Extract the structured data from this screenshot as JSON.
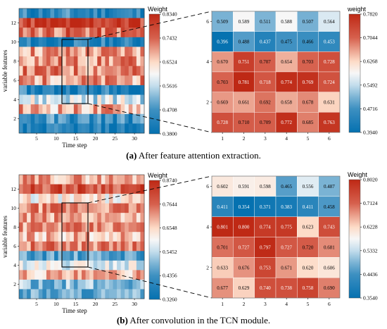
{
  "panels": [
    {
      "id": "a",
      "caption_label": "(a)",
      "caption_text": " After feature attention extraction.",
      "overview": {
        "xlabel": "Time step",
        "ylabel": "variable features",
        "x_ticks": [
          "5",
          "10",
          "15",
          "20",
          "25",
          "30"
        ],
        "y_ticks": [
          "2",
          "4",
          "6",
          "8",
          "10",
          "12"
        ],
        "colorbar_title": "Weight",
        "colorbar_ticks": [
          "0.8340",
          "0.7432",
          "0.6524",
          "0.5616",
          "0.4708",
          "0.3800"
        ],
        "vmin": 0.38,
        "vmax": 0.834,
        "n_rows": 13,
        "n_cols": 32,
        "row_means": [
          0.44,
          0.8,
          0.74,
          0.42,
          0.7,
          0.71,
          0.72,
          0.7,
          0.43,
          0.58,
          0.68,
          0.46,
          0.41
        ],
        "seed": 11
      },
      "zoom": {
        "y_ticks": [
          "2",
          "4",
          "6"
        ],
        "x_ticks": [
          "1",
          "2",
          "3",
          "4",
          "5",
          "6"
        ],
        "colorbar_title": "weight",
        "colorbar_ticks": [
          "0.7820",
          "0.7044",
          "0.6268",
          "0.5492",
          "0.4716",
          "0.3940"
        ],
        "vmin": 0.394,
        "vmax": 0.782
      }
    },
    {
      "id": "b",
      "caption_label": "(b)",
      "caption_text": " After convolution in the TCN module.",
      "overview": {
        "xlabel": "Time step",
        "ylabel": "variable features",
        "x_ticks": [
          "5",
          "10",
          "15",
          "20",
          "25",
          "30"
        ],
        "y_ticks": [
          "2",
          "4",
          "6",
          "8",
          "10",
          "12"
        ],
        "colorbar_title": "Weight",
        "colorbar_ticks": [
          "0.8740",
          "0.7644",
          "0.6548",
          "0.5452",
          "0.4356",
          "0.3260"
        ],
        "vmin": 0.326,
        "vmax": 0.874,
        "n_rows": 13,
        "n_cols": 32,
        "row_means": [
          0.7,
          0.8,
          0.62,
          0.73,
          0.7,
          0.72,
          0.68,
          0.74,
          0.45,
          0.58,
          0.68,
          0.5,
          0.47
        ],
        "seed": 29
      },
      "zoom": {
        "y_ticks": [
          "2",
          "4",
          "6"
        ],
        "x_ticks": [
          "1",
          "2",
          "3",
          "4",
          "5",
          "6"
        ],
        "colorbar_title": "Weight",
        "colorbar_ticks": [
          "0.8020",
          "0.7124",
          "0.6228",
          "0.5332",
          "0.4436",
          "0.3540"
        ],
        "vmin": 0.354,
        "vmax": 0.802
      }
    }
  ],
  "chart_data": [
    {
      "type": "heatmap",
      "panel": "a",
      "xlabel": "",
      "ylabel": "",
      "x": [
        1,
        2,
        3,
        4,
        5,
        6
      ],
      "y": [
        1,
        2,
        3,
        4,
        5,
        6
      ],
      "values_top_to_bottom": [
        [
          0.509,
          0.589,
          0.511,
          0.588,
          0.507,
          0.564
        ],
        [
          0.396,
          0.488,
          0.437,
          0.475,
          0.466,
          0.453
        ],
        [
          0.67,
          0.751,
          0.707,
          0.654,
          0.703,
          0.728
        ],
        [
          0.703,
          0.781,
          0.718,
          0.774,
          0.769,
          0.724
        ],
        [
          0.669,
          0.661,
          0.692,
          0.658,
          0.678,
          0.631
        ],
        [
          0.728,
          0.71,
          0.709,
          0.772,
          0.685,
          0.763
        ]
      ],
      "colorbar_range": [
        0.394,
        0.782
      ]
    },
    {
      "type": "heatmap",
      "panel": "b",
      "xlabel": "",
      "ylabel": "",
      "x": [
        1,
        2,
        3,
        4,
        5,
        6
      ],
      "y": [
        1,
        2,
        3,
        4,
        5,
        6
      ],
      "values_top_to_bottom": [
        [
          0.602,
          0.591,
          0.598,
          0.465,
          0.556,
          0.487
        ],
        [
          0.411,
          0.354,
          0.371,
          0.383,
          0.411,
          0.458
        ],
        [
          0.801,
          0.8,
          0.774,
          0.775,
          0.623,
          0.743
        ],
        [
          0.701,
          0.727,
          0.797,
          0.727,
          0.72,
          0.681
        ],
        [
          0.633,
          0.676,
          0.753,
          0.671,
          0.62,
          0.606
        ],
        [
          0.677,
          0.629,
          0.74,
          0.738,
          0.758,
          0.69
        ]
      ],
      "colorbar_range": [
        0.354,
        0.802
      ]
    }
  ]
}
